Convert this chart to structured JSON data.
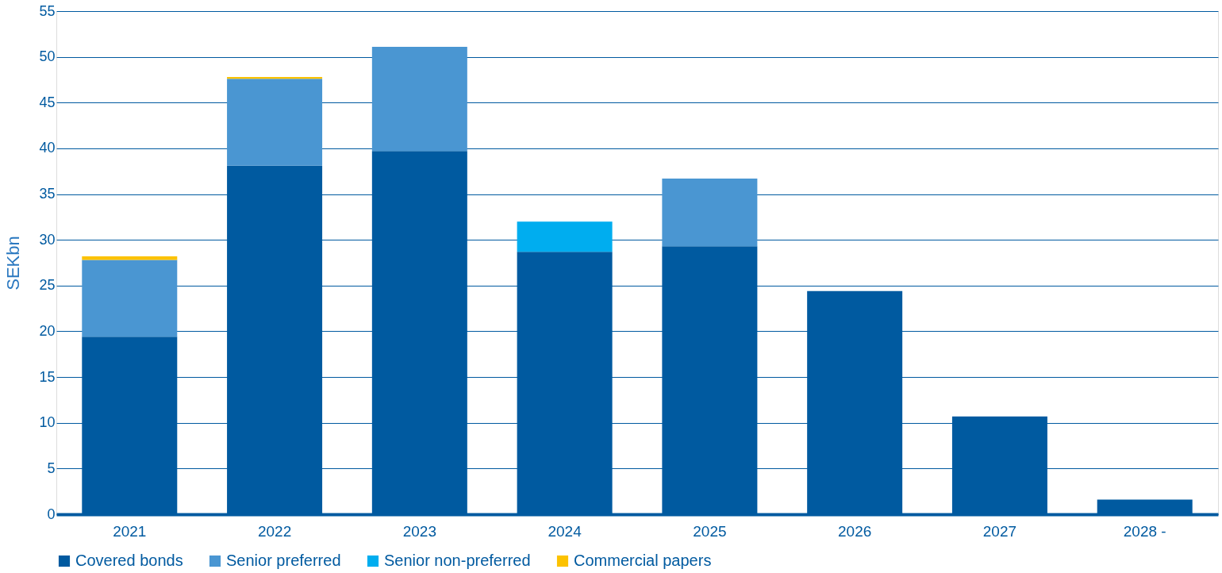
{
  "chart_data": {
    "type": "bar",
    "stacked": true,
    "ylabel": "SEKbn",
    "categories": [
      "2021",
      "2022",
      "2023",
      "2024",
      "2025",
      "2026",
      "2027",
      "2028 -"
    ],
    "series": [
      {
        "name": "Covered bonds",
        "color": "#005aa0",
        "values": [
          19.4,
          38.1,
          39.7,
          28.7,
          29.3,
          24.4,
          10.7,
          1.6
        ]
      },
      {
        "name": "Senior preferred",
        "color": "#4a96d2",
        "values": [
          8.4,
          9.5,
          11.4,
          null,
          7.4,
          null,
          null,
          null
        ]
      },
      {
        "name": "Senior non-preferred",
        "color": "#00adef",
        "values": [
          null,
          null,
          null,
          3.3,
          null,
          null,
          null,
          null
        ]
      },
      {
        "name": "Commercial papers",
        "color": "#fcc200",
        "values": [
          0.4,
          0.2,
          null,
          null,
          null,
          null,
          null,
          null
        ]
      }
    ],
    "ylim": [
      0,
      55
    ],
    "yticks": [
      0,
      5,
      10,
      15,
      20,
      25,
      30,
      35,
      40,
      45,
      50,
      55
    ],
    "grid": "y",
    "legend": "bottom"
  }
}
